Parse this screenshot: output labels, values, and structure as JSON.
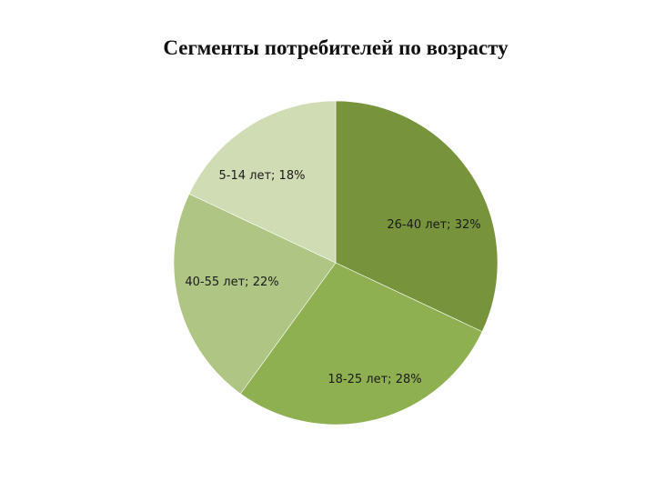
{
  "chart_data": {
    "type": "pie",
    "title": "Сегменты потребителей по возрасту",
    "slices": [
      {
        "label": "26-40 лет; 32%",
        "category": "26-40 лет",
        "value": 32,
        "color": "#77933c"
      },
      {
        "label": "18-25 лет; 28%",
        "category": "18-25 лет",
        "value": 28,
        "color": "#8eb050"
      },
      {
        "label": "40-55 лет; 22%",
        "category": "40-55 лет",
        "value": 22,
        "color": "#aec583"
      },
      {
        "label": "5-14 лет; 18%",
        "category": "5-14 лет",
        "value": 18,
        "color": "#d0dcb3"
      }
    ],
    "legend": "none"
  }
}
